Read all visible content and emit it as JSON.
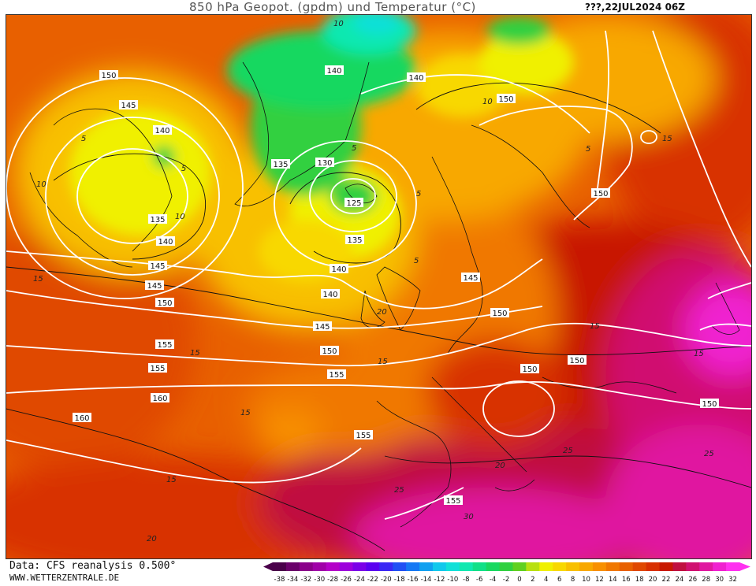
{
  "header": {
    "title": "850 hPa Geopot. (gpdm) und Temperatur (°C)",
    "valid_time": "???,22JUL2024 06Z"
  },
  "footer": {
    "data_source": "Data: CFS reanalysis 0.500°",
    "website": "WWW.WETTERZENTRALE.DE"
  },
  "legend": {
    "ticks": [
      "-38",
      "-34",
      "-32",
      "-30",
      "-28",
      "-26",
      "-24",
      "-22",
      "-20",
      "-18",
      "-16",
      "-14",
      "-12",
      "-10",
      "-8",
      "-6",
      "-4",
      "-2",
      "0",
      "2",
      "4",
      "6",
      "8",
      "10",
      "12",
      "14",
      "16",
      "18",
      "20",
      "22",
      "24",
      "26",
      "28",
      "30",
      "32"
    ],
    "colors": [
      "#4a004a",
      "#6a006a",
      "#8a008a",
      "#a000a8",
      "#b400c8",
      "#9c00dc",
      "#7a00e8",
      "#5a00f0",
      "#3a28f4",
      "#2050f4",
      "#1478f4",
      "#10a0f0",
      "#10c8ec",
      "#10e0d8",
      "#10e8b0",
      "#10e088",
      "#18d860",
      "#30d040",
      "#60d020",
      "#b8e010",
      "#f0f000",
      "#f8d800",
      "#f8c000",
      "#f8a800",
      "#f89000",
      "#f07800",
      "#e86000",
      "#e04800",
      "#d83000",
      "#c81800",
      "#c01040",
      "#d01070",
      "#e018a0",
      "#f020d0",
      "#ff30f0"
    ]
  },
  "map": {
    "geopotential_labels": [
      "150",
      "145",
      "140",
      "140",
      "135",
      "140",
      "145",
      "150",
      "160",
      "160",
      "155",
      "150",
      "140",
      "135",
      "130",
      "125",
      "135",
      "140",
      "145",
      "150",
      "155",
      "140",
      "150",
      "145",
      "150",
      "150",
      "150",
      "155",
      "150",
      "155",
      "155",
      "145"
    ],
    "temperature_labels": [
      "10",
      "5",
      "10",
      "5",
      "5",
      "10",
      "15",
      "15",
      "15",
      "15",
      "20",
      "15",
      "20",
      "25",
      "30",
      "25",
      "15",
      "20",
      "5",
      "10",
      "15",
      "5",
      "5",
      "15",
      "25"
    ]
  }
}
